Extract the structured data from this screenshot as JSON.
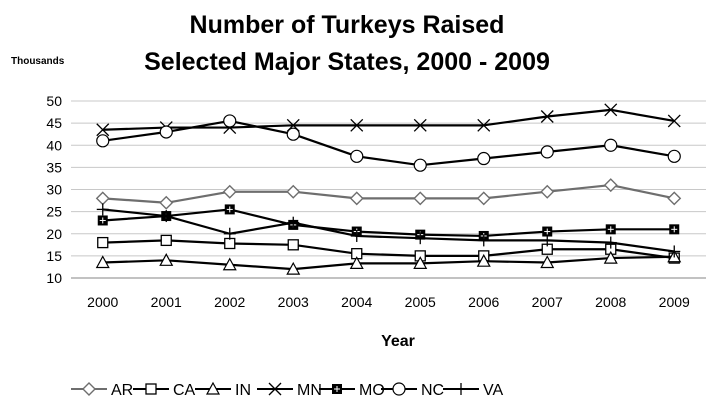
{
  "chart_data": {
    "type": "line",
    "title": [
      "Number of Turkeys Raised",
      "Selected Major States, 2000 - 2009"
    ],
    "ylabel": "Thousands",
    "xlabel": "Year",
    "x": [
      "2000",
      "2001",
      "2002",
      "2003",
      "2004",
      "2005",
      "2006",
      "2007",
      "2008",
      "2009"
    ],
    "ylim": [
      10,
      50
    ],
    "yticks": [
      10,
      15,
      20,
      25,
      30,
      35,
      40,
      45,
      50
    ],
    "grid": "horizontal",
    "legend": "bottom",
    "series": [
      {
        "name": "AR",
        "marker": "diamond",
        "color": "#6e6e6e",
        "values": [
          28,
          27,
          29.5,
          29.5,
          28,
          28,
          28,
          29.5,
          31,
          28
        ]
      },
      {
        "name": "CA",
        "marker": "square",
        "color": "#000000",
        "values": [
          18,
          18.5,
          17.8,
          17.5,
          15.5,
          15,
          15,
          16.5,
          16.5,
          14.5
        ]
      },
      {
        "name": "IN",
        "marker": "triangle",
        "color": "#000000",
        "values": [
          13.5,
          14,
          13,
          12,
          13.3,
          13.3,
          13.8,
          13.5,
          14.5,
          14.8
        ]
      },
      {
        "name": "MN",
        "marker": "x",
        "color": "#000000",
        "values": [
          43.5,
          44,
          44,
          44.5,
          44.5,
          44.5,
          44.5,
          46.5,
          48,
          45.5
        ]
      },
      {
        "name": "MO",
        "marker": "filled-square",
        "color": "#000000",
        "values": [
          23,
          24,
          25.5,
          22,
          20.5,
          19.8,
          19.5,
          20.5,
          21,
          21
        ]
      },
      {
        "name": "NC",
        "marker": "circle",
        "color": "#000000",
        "values": [
          41,
          43,
          45.5,
          42.5,
          37.5,
          35.5,
          37,
          38.5,
          40,
          37.5
        ]
      },
      {
        "name": "VA",
        "marker": "plus",
        "color": "#000000",
        "values": [
          25.5,
          24,
          20,
          22.5,
          19.5,
          19,
          18.5,
          18.5,
          18,
          16
        ]
      }
    ]
  }
}
